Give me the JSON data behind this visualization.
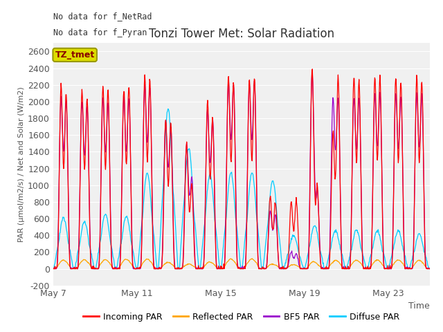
{
  "title": "Tonzi Tower Met: Solar Radiation",
  "ylabel": "PAR (μmol/m2/s) / Net and Solar (W/m2)",
  "xlabel": "Time",
  "xlim_labels": [
    "May 7",
    "May 11",
    "May 15",
    "May 19",
    "May 23"
  ],
  "ylim": [
    -200,
    2700
  ],
  "yticks": [
    -200,
    0,
    200,
    400,
    600,
    800,
    1000,
    1200,
    1400,
    1600,
    1800,
    2000,
    2200,
    2400,
    2600
  ],
  "bg_color": "#e8e8e8",
  "plot_bg_color": "#f0f0f0",
  "legend_items": [
    "Incoming PAR",
    "Reflected PAR",
    "BF5 PAR",
    "Diffuse PAR"
  ],
  "legend_colors": [
    "#ff0000",
    "#ffa500",
    "#9900cc",
    "#00ccff"
  ],
  "text_lines": [
    "No data for f_NetRad",
    "No data for f_Pyran"
  ],
  "tag_label": "TZ_tmet",
  "tag_color": "#dddd00",
  "tag_text_color": "#880000"
}
